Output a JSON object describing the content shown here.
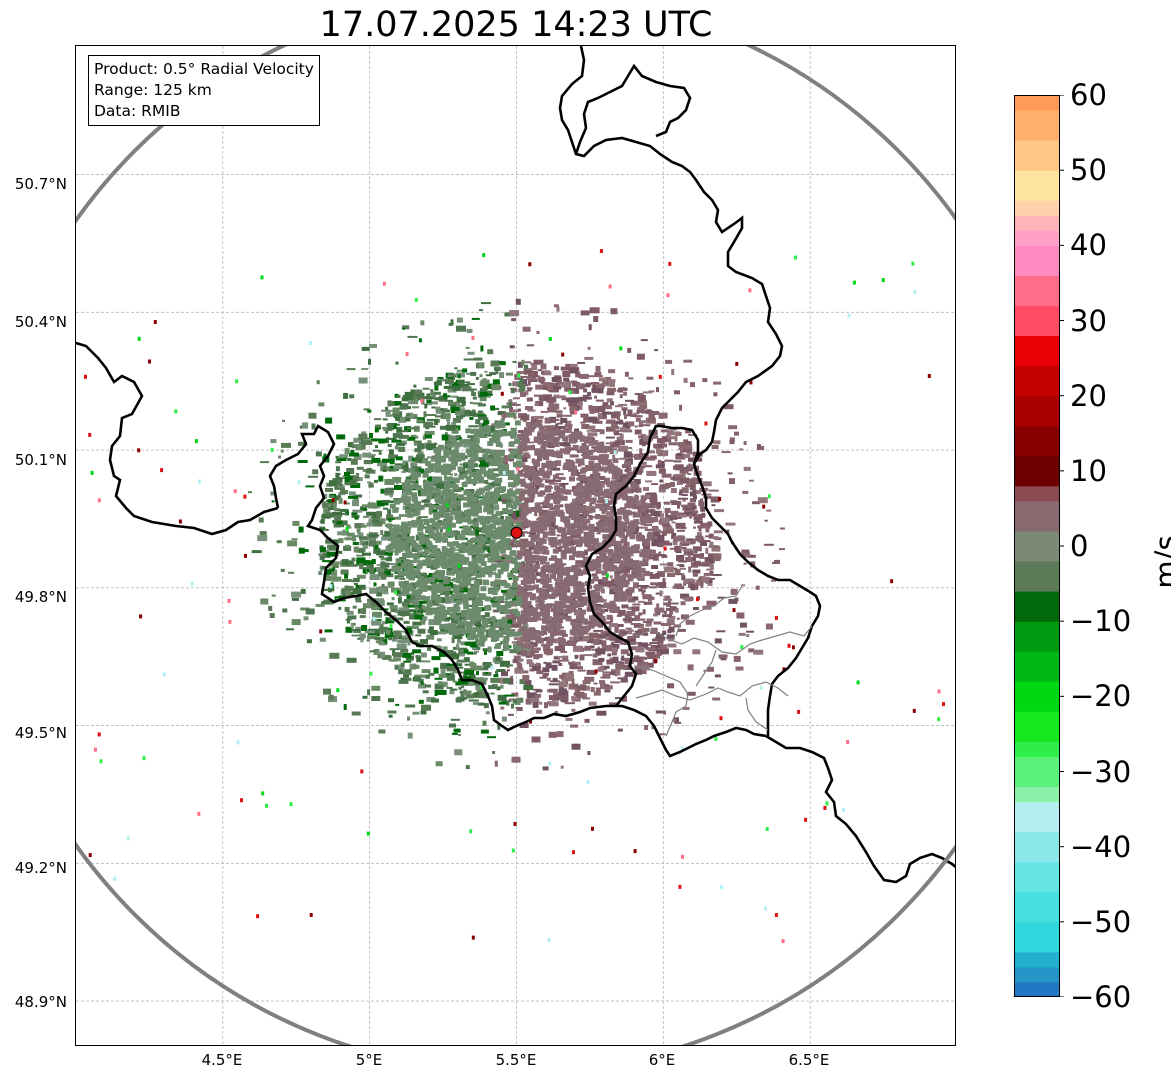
{
  "title": "17.07.2025 14:23 UTC",
  "info_box": {
    "line1": "Product: 0.5° Radial Velocity",
    "line2": "Range: 125 km",
    "line3": "Data: RMIB"
  },
  "lat_labels": [
    "50.7°N",
    "50.4°N",
    "50.1°N",
    "49.8°N",
    "49.5°N",
    "49.2°N",
    "48.9°N"
  ],
  "lon_labels": [
    "4.5°E",
    "5°E",
    "5.5°E",
    "6°E",
    "6.5°E"
  ],
  "map": {
    "extent": {
      "lon_min": 4.0,
      "lon_max": 7.0,
      "lat_min": 48.8,
      "lat_max": 50.98
    },
    "grid_lats": [
      48.9,
      49.2,
      49.5,
      49.8,
      50.1,
      50.4,
      50.7
    ],
    "grid_lons": [
      4.5,
      5.0,
      5.5,
      6.0,
      6.5
    ],
    "radar_site": {
      "lon": 5.5,
      "lat": 49.92
    },
    "range_ring_km": 125,
    "colors": {
      "range_ring": "#808080",
      "radar_marker": "#dd1111",
      "border": "#000000",
      "sub_border": "#808080"
    }
  },
  "colorbar": {
    "label": "m/s",
    "min": -60,
    "max": 60,
    "ticks": [
      "60",
      "50",
      "40",
      "30",
      "20",
      "10",
      "0",
      "−10",
      "−20",
      "−30",
      "−40",
      "−50",
      "−60"
    ],
    "tick_values": [
      60,
      50,
      40,
      30,
      20,
      10,
      0,
      -10,
      -20,
      -30,
      -40,
      -50,
      -60
    ],
    "bands": [
      {
        "from": -60,
        "to": -58,
        "color": "#2278c2"
      },
      {
        "from": -58,
        "to": -56,
        "color": "#2496c8"
      },
      {
        "from": -56,
        "to": -54,
        "color": "#22b0d0"
      },
      {
        "from": -54,
        "to": -50,
        "color": "#2ed8dc"
      },
      {
        "from": -50,
        "to": -46,
        "color": "#46e0e0"
      },
      {
        "from": -46,
        "to": -42,
        "color": "#66e4e4"
      },
      {
        "from": -42,
        "to": -38,
        "color": "#8ae8e8"
      },
      {
        "from": -38,
        "to": -34,
        "color": "#b4eef0"
      },
      {
        "from": -34,
        "to": -32,
        "color": "#8cf0a8"
      },
      {
        "from": -32,
        "to": -28,
        "color": "#5af07a"
      },
      {
        "from": -28,
        "to": -26,
        "color": "#30ee4a"
      },
      {
        "from": -26,
        "to": -22,
        "color": "#14e81e"
      },
      {
        "from": -22,
        "to": -18,
        "color": "#00d814"
      },
      {
        "from": -18,
        "to": -14,
        "color": "#00b814"
      },
      {
        "from": -14,
        "to": -10,
        "color": "#009a10"
      },
      {
        "from": -10,
        "to": -6,
        "color": "#00690a"
      },
      {
        "from": -6,
        "to": -2,
        "color": "#5c7a58"
      },
      {
        "from": -2,
        "to": 2,
        "color": "#7a8a76"
      },
      {
        "from": 2,
        "to": 6,
        "color": "#8a6870"
      },
      {
        "from": 6,
        "to": 8,
        "color": "#8a4a52"
      },
      {
        "from": 8,
        "to": 12,
        "color": "#6e0000"
      },
      {
        "from": 12,
        "to": 16,
        "color": "#8a0000"
      },
      {
        "from": 16,
        "to": 20,
        "color": "#a60000"
      },
      {
        "from": 20,
        "to": 24,
        "color": "#c40000"
      },
      {
        "from": 24,
        "to": 28,
        "color": "#e80006"
      },
      {
        "from": 28,
        "to": 32,
        "color": "#ff4c64"
      },
      {
        "from": 32,
        "to": 36,
        "color": "#ff6e88"
      },
      {
        "from": 36,
        "to": 40,
        "color": "#ff8ac0"
      },
      {
        "from": 40,
        "to": 42,
        "color": "#ffa0c6"
      },
      {
        "from": 42,
        "to": 44,
        "color": "#ffb4b8"
      },
      {
        "from": 44,
        "to": 46,
        "color": "#ffd2aa"
      },
      {
        "from": 46,
        "to": 50,
        "color": "#ffe4a0"
      },
      {
        "from": 50,
        "to": 54,
        "color": "#ffc684"
      },
      {
        "from": 54,
        "to": 58,
        "color": "#ffb06c"
      },
      {
        "from": 58,
        "to": 60,
        "color": "#ff9a58"
      }
    ]
  }
}
